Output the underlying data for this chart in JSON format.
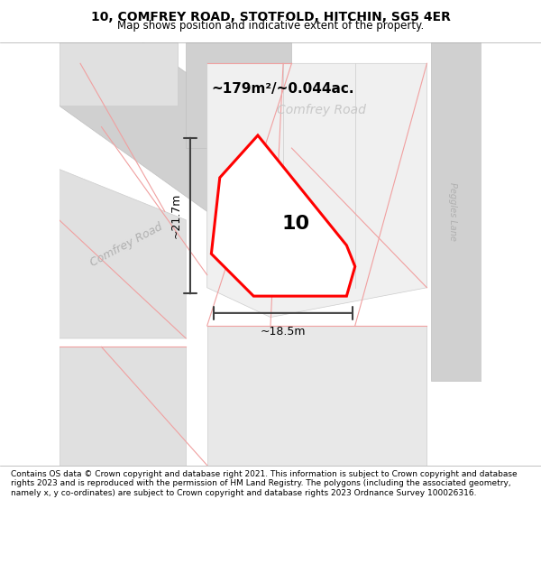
{
  "title_line1": "10, COMFREY ROAD, STOTFOLD, HITCHIN, SG5 4ER",
  "title_line2": "Map shows position and indicative extent of the property.",
  "footer_text": "Contains OS data © Crown copyright and database right 2021. This information is subject to Crown copyright and database rights 2023 and is reproduced with the permission of HM Land Registry. The polygons (including the associated geometry, namely x, y co-ordinates) are subject to Crown copyright and database rights 2023 Ordnance Survey 100026316.",
  "area_label": "~179m²/~0.044ac.",
  "property_number": "10",
  "dim_height": "~21.7m",
  "dim_width": "~18.5m",
  "road_label_1": "Comfrey Road",
  "road_label_2": "Peggles Lane",
  "bg_color": "#e8e8e8",
  "map_bg": "#e8e8e8",
  "property_fill": "#ffffff",
  "property_outline": "#ff0000",
  "road_color": "#ffffff",
  "building_color": "#d8d8d8",
  "faint_line_color": "#f0a0a0",
  "dim_line_color": "#404040",
  "road_text_color": "#b0b0b0"
}
